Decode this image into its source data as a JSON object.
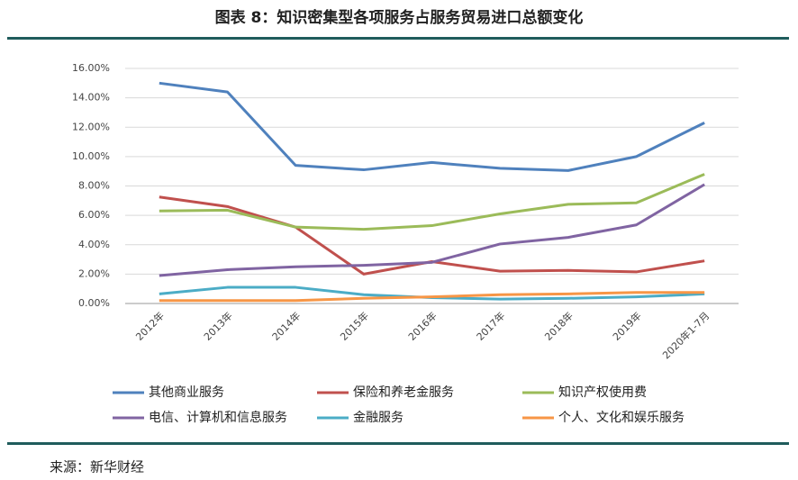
{
  "chart_data": {
    "type": "line",
    "title": "图表 8：知识密集型各项服务占服务贸易进口总额变化",
    "source": "来源：新华财经",
    "categories": [
      "2012年",
      "2013年",
      "2014年",
      "2015年",
      "2016年",
      "2017年",
      "2018年",
      "2019年",
      "2020年1-7月"
    ],
    "series": [
      {
        "name": "其他商业服务",
        "color": "#4f81bd",
        "values": [
          15.0,
          14.4,
          9.4,
          9.1,
          9.6,
          9.2,
          9.05,
          10.0,
          12.3
        ]
      },
      {
        "name": "保险和养老金服务",
        "color": "#c0504d",
        "values": [
          7.25,
          6.6,
          5.2,
          2.0,
          2.85,
          2.2,
          2.25,
          2.15,
          2.9
        ]
      },
      {
        "name": "知识产权使用费",
        "color": "#9bbb59",
        "values": [
          6.3,
          6.35,
          5.2,
          5.05,
          5.3,
          6.1,
          6.75,
          6.85,
          8.8
        ]
      },
      {
        "name": "电信、计算机和信息服务",
        "color": "#8064a2",
        "values": [
          1.9,
          2.3,
          2.5,
          2.6,
          2.8,
          4.05,
          4.5,
          5.35,
          8.1
        ]
      },
      {
        "name": "金融服务",
        "color": "#4bacc6",
        "values": [
          0.65,
          1.1,
          1.1,
          0.6,
          0.4,
          0.3,
          0.35,
          0.45,
          0.65
        ]
      },
      {
        "name": "个人、文化和娱乐服务",
        "color": "#f79646",
        "values": [
          0.2,
          0.2,
          0.2,
          0.35,
          0.45,
          0.6,
          0.65,
          0.75,
          0.75
        ]
      }
    ],
    "ylim": [
      0,
      16
    ],
    "yticks": [
      {
        "value": 0,
        "label": "0.00%"
      },
      {
        "value": 2,
        "label": "2.00%"
      },
      {
        "value": 4,
        "label": "4.00%"
      },
      {
        "value": 6,
        "label": "6.00%"
      },
      {
        "value": 8,
        "label": "8.00%"
      },
      {
        "value": 10,
        "label": "10.00%"
      },
      {
        "value": 12,
        "label": "12.00%"
      },
      {
        "value": 14,
        "label": "14.00%"
      },
      {
        "value": 16,
        "label": "16.00%"
      }
    ],
    "grid": true
  }
}
